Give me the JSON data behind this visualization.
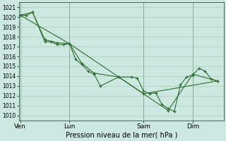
{
  "xlabel": "Pression niveau de la mer( hPa )",
  "bg_color": "#cce8e0",
  "grid_color": "#aaccbb",
  "line_color": "#2d6e2d",
  "ylim": [
    1009.5,
    1021.5
  ],
  "yticks": [
    1010,
    1011,
    1012,
    1013,
    1014,
    1015,
    1016,
    1017,
    1018,
    1019,
    1020,
    1021
  ],
  "xtick_labels": [
    "Ven",
    "Lun",
    "Sam",
    "Dim"
  ],
  "xtick_positions": [
    0,
    4,
    10,
    14
  ],
  "vline_positions": [
    0,
    4,
    10,
    14
  ],
  "xlim": [
    -0.1,
    16.5
  ],
  "series1_x": [
    0,
    0.5,
    1.0,
    2.0,
    2.5,
    3.0,
    3.5,
    4.0,
    4.5,
    5.0,
    5.5,
    6.0,
    6.5,
    8.0,
    9.0,
    9.5,
    10.0,
    10.5,
    11.0,
    11.5,
    12.0,
    12.5,
    13.0,
    13.5,
    14.0,
    14.5,
    15.0,
    15.5,
    16.0
  ],
  "series1_y": [
    1020.2,
    1020.2,
    1020.5,
    1017.5,
    1017.5,
    1017.2,
    1017.2,
    1017.3,
    1015.7,
    1015.2,
    1014.5,
    1014.2,
    1013.0,
    1013.9,
    1013.9,
    1013.8,
    1012.5,
    1012.2,
    1012.3,
    1011.1,
    1010.7,
    1010.4,
    1013.1,
    1013.9,
    1014.1,
    1014.8,
    1014.5,
    1013.7,
    1013.5
  ],
  "series2_x": [
    0,
    1.0,
    2.0,
    3.0,
    4.0,
    5.0,
    6.0,
    8.0,
    10.0,
    12.0,
    14.0,
    16.0
  ],
  "series2_y": [
    1020.2,
    1020.5,
    1017.7,
    1017.4,
    1017.3,
    1015.3,
    1014.3,
    1013.9,
    1012.2,
    1010.5,
    1014.2,
    1013.5
  ],
  "series3_x": [
    0,
    4.0,
    10.0,
    16.0
  ],
  "series3_y": [
    1020.2,
    1017.3,
    1012.2,
    1013.5
  ]
}
